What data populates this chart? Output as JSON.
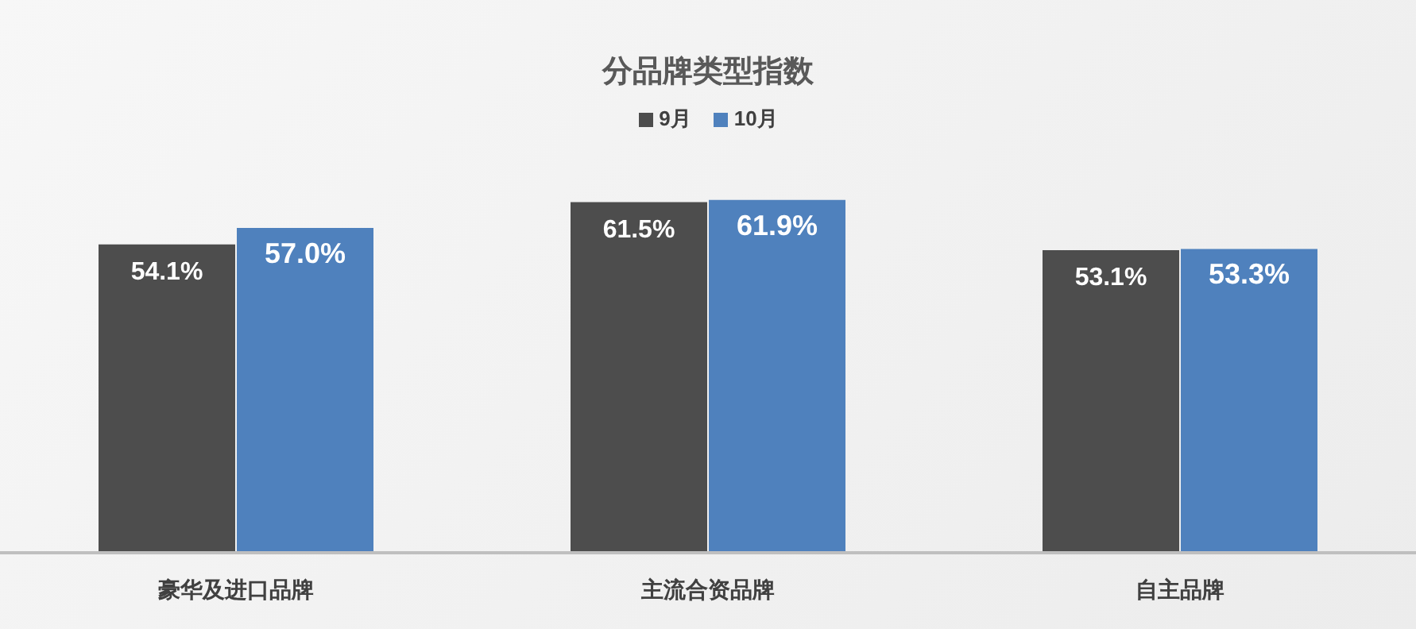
{
  "chart_data": {
    "type": "bar",
    "title": "分品牌类型指数",
    "categories": [
      "豪华及进口品牌",
      "主流合资品牌",
      "自主品牌"
    ],
    "series": [
      {
        "name": "9月",
        "color": "#4d4d4d",
        "values": [
          54.1,
          61.5,
          53.1
        ],
        "value_labels": [
          "54.1%",
          "61.5%",
          "53.1%"
        ]
      },
      {
        "name": "10月",
        "color": "#4f81bd",
        "values": [
          57.0,
          61.9,
          53.3
        ],
        "value_labels": [
          "57.0%",
          "61.9%",
          "53.3%"
        ]
      }
    ],
    "legend": "top"
  }
}
